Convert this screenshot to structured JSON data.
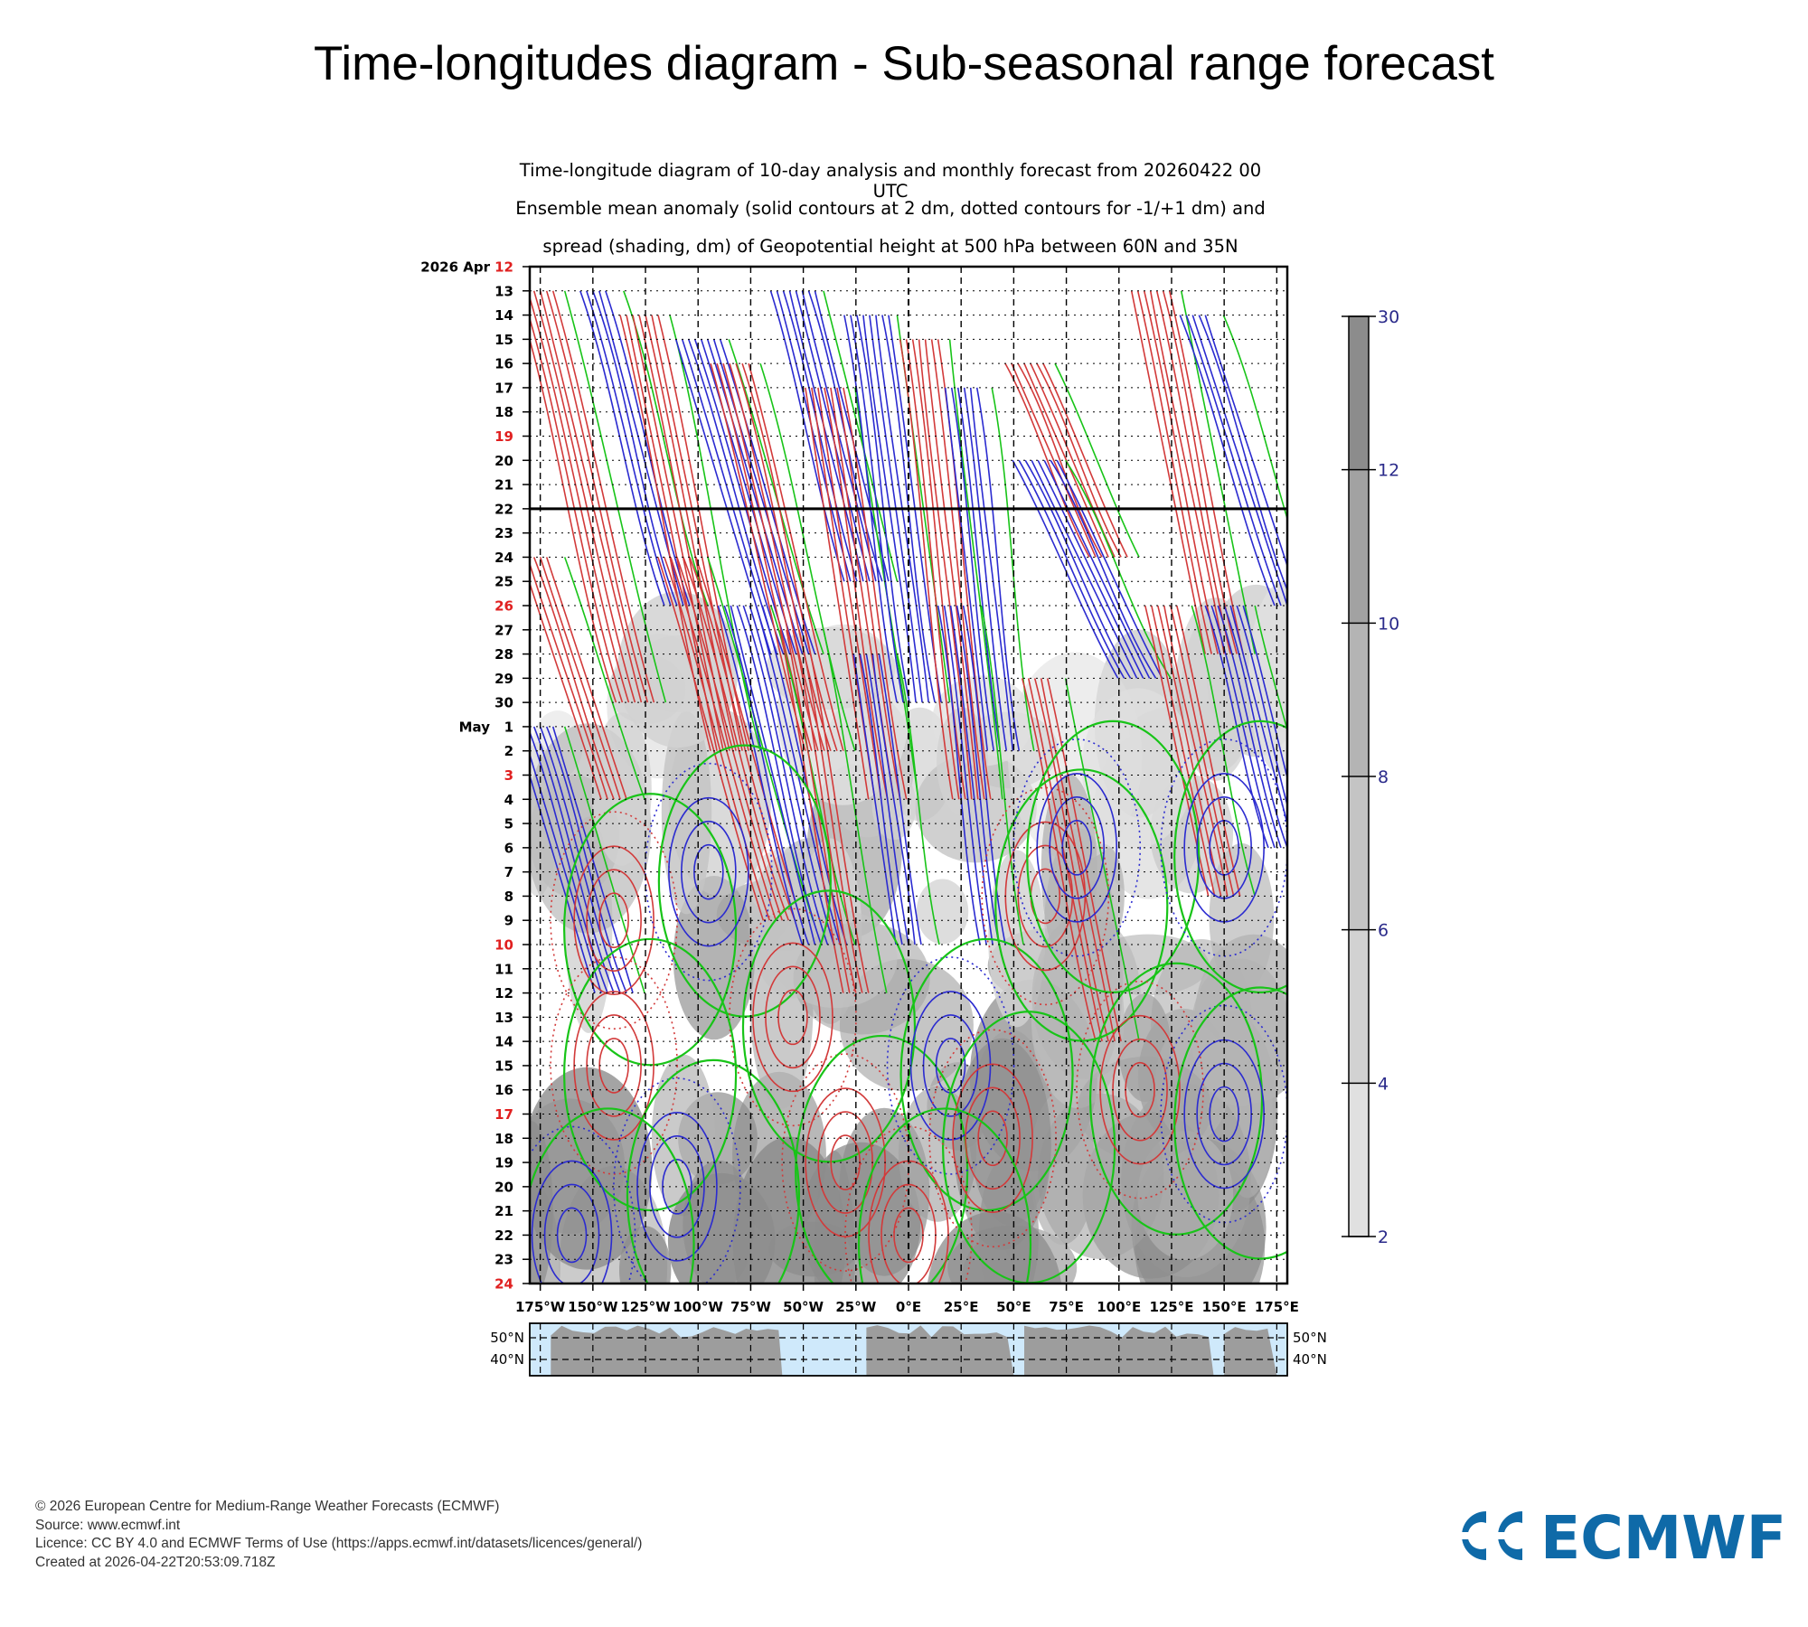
{
  "page": {
    "title": "Time-longitudes diagram - Sub-seasonal range forecast"
  },
  "chart_data": {
    "type": "heatmap",
    "title_lines": [
      "Time-longitude diagram of 10-day analysis and monthly forecast from 20260422 00 UTC",
      "Ensemble mean anomaly (solid contours at 2 dm, dotted contours for -1/+1 dm) and",
      "spread (shading, dm) of Geopotential height at 500 hPa between 60N and 35N"
    ],
    "y_axis": {
      "start_label": "2026 Apr",
      "ticks": [
        {
          "label": "12",
          "red": true
        },
        {
          "label": "13"
        },
        {
          "label": "14"
        },
        {
          "label": "15"
        },
        {
          "label": "16"
        },
        {
          "label": "17"
        },
        {
          "label": "18"
        },
        {
          "label": "19",
          "red": true
        },
        {
          "label": "20"
        },
        {
          "label": "21"
        },
        {
          "label": "22"
        },
        {
          "label": "23"
        },
        {
          "label": "24"
        },
        {
          "label": "25"
        },
        {
          "label": "26",
          "red": true
        },
        {
          "label": "27"
        },
        {
          "label": "28"
        },
        {
          "label": "29"
        },
        {
          "label": "30"
        },
        {
          "label": "1",
          "month": "May"
        },
        {
          "label": "2"
        },
        {
          "label": "3",
          "red": true
        },
        {
          "label": "4"
        },
        {
          "label": "5"
        },
        {
          "label": "6"
        },
        {
          "label": "7"
        },
        {
          "label": "8"
        },
        {
          "label": "9"
        },
        {
          "label": "10",
          "red": true
        },
        {
          "label": "11"
        },
        {
          "label": "12"
        },
        {
          "label": "13"
        },
        {
          "label": "14"
        },
        {
          "label": "15"
        },
        {
          "label": "16"
        },
        {
          "label": "17",
          "red": true
        },
        {
          "label": "18"
        },
        {
          "label": "19"
        },
        {
          "label": "20"
        },
        {
          "label": "21"
        },
        {
          "label": "22"
        },
        {
          "label": "23"
        },
        {
          "label": "24",
          "red": true
        }
      ],
      "analysis_forecast_boundary": "22"
    },
    "x_axis": {
      "range": [
        -180,
        180
      ],
      "ticks": [
        {
          "lon": -175,
          "label": "175°W"
        },
        {
          "lon": -150,
          "label": "150°W"
        },
        {
          "lon": -125,
          "label": "125°W"
        },
        {
          "lon": -100,
          "label": "100°W"
        },
        {
          "lon": -75,
          "label": "75°W"
        },
        {
          "lon": -50,
          "label": "50°W"
        },
        {
          "lon": -25,
          "label": "25°W"
        },
        {
          "lon": 0,
          "label": "0°E"
        },
        {
          "lon": 25,
          "label": "25°E"
        },
        {
          "lon": 50,
          "label": "50°E"
        },
        {
          "lon": 75,
          "label": "75°E"
        },
        {
          "lon": 100,
          "label": "100°E"
        },
        {
          "lon": 125,
          "label": "125°E"
        },
        {
          "lon": 150,
          "label": "150°E"
        },
        {
          "lon": 175,
          "label": "175°E"
        }
      ]
    },
    "colorbar": {
      "ticks": [
        "30",
        "12",
        "10",
        "8",
        "6",
        "4",
        "2"
      ],
      "colors": [
        "#8c8c8c",
        "#a2a2a2",
        "#b4b4b4",
        "#c4c4c4",
        "#d2d2d2",
        "#e0e0e0"
      ]
    },
    "map_strip": {
      "lat_labels": [
        "50°N",
        "40°N"
      ]
    },
    "colors": {
      "positive": "#d23a3a",
      "negative": "#2b2bd0",
      "zero": "#18c418",
      "land": "#9d9d9d",
      "ocean": "#cfe9fb"
    }
  },
  "footer": {
    "copyright": "© 2026 European Centre for Medium-Range Weather Forecasts (ECMWF)",
    "source": "Source: www.ecmwf.int",
    "licence": "Licence: CC BY 4.0 and ECMWF Terms of Use (https://apps.ecmwf.int/datasets/licences/general/)",
    "created": "Created at 2026-04-22T20:53:09.718Z"
  },
  "logo": {
    "text": "ECMWF",
    "color": "#0f6aa8"
  }
}
